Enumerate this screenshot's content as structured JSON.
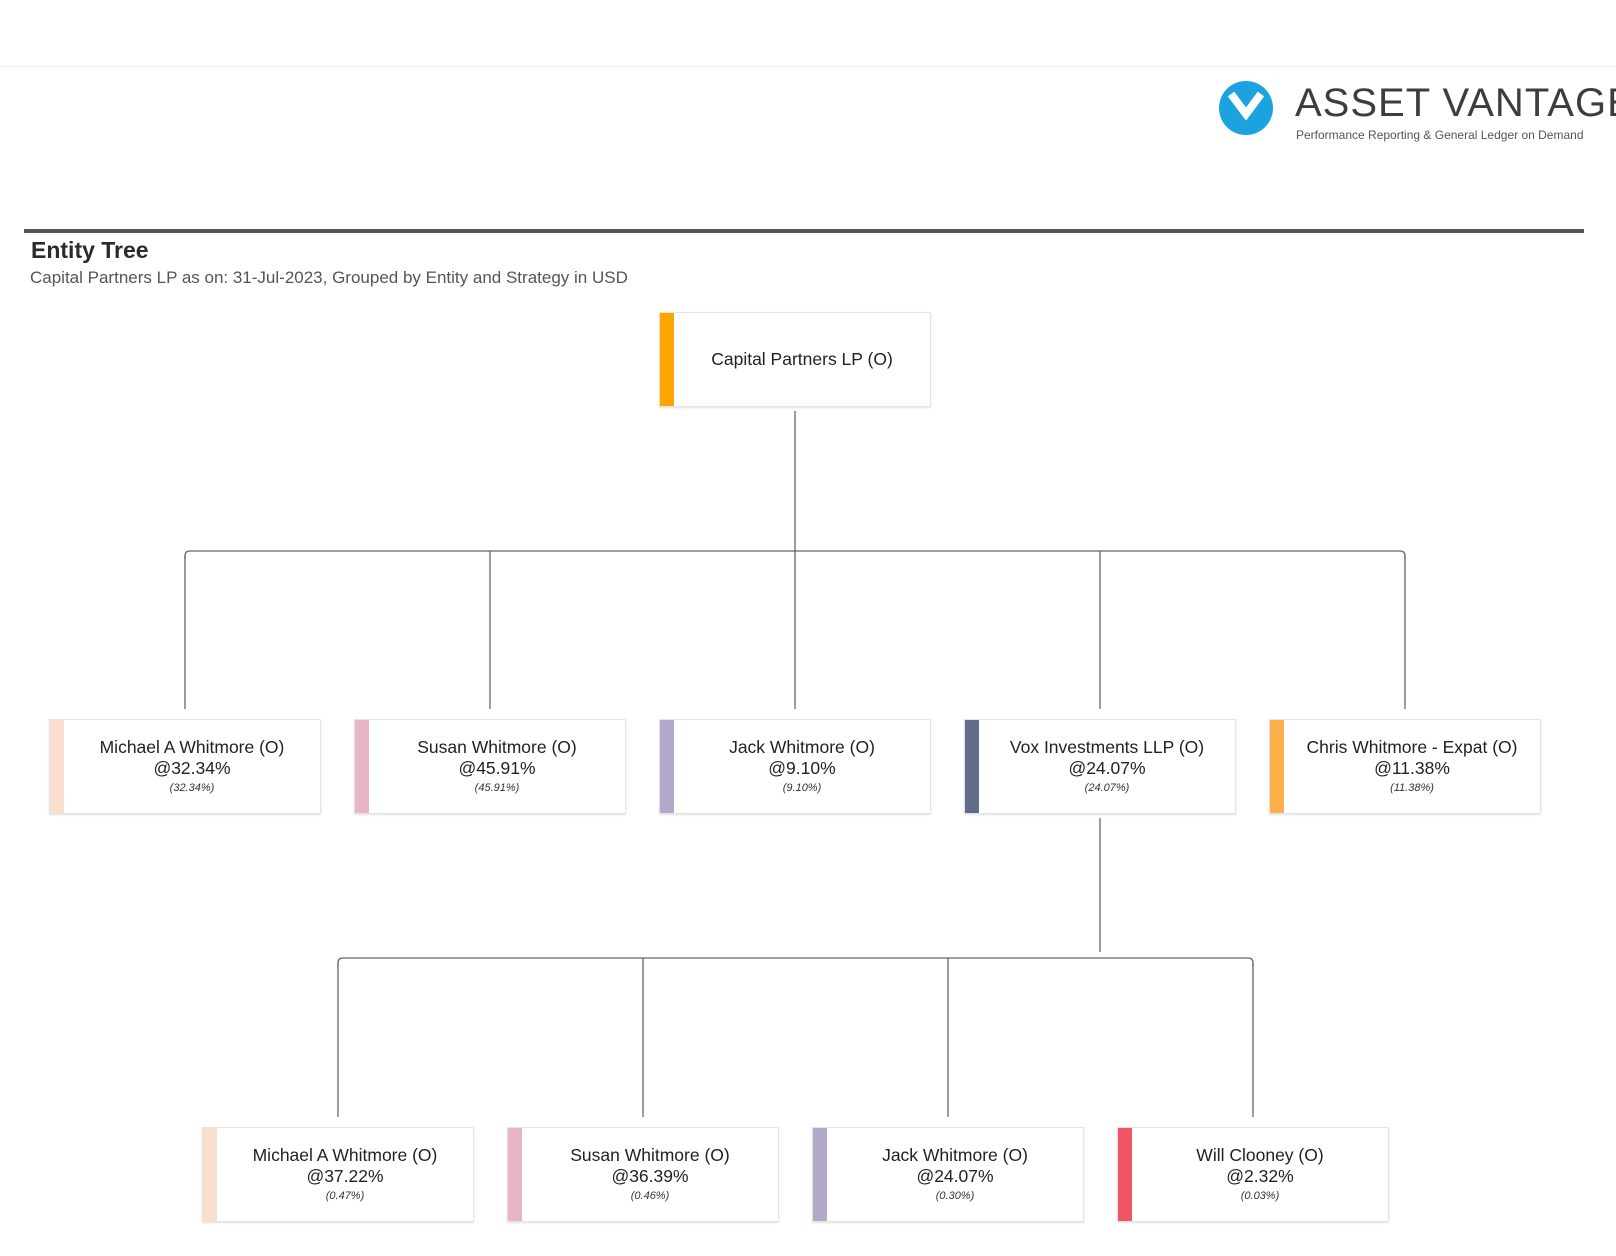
{
  "brand": {
    "name": "ASSET VANTAGE",
    "tagline": "Performance Reporting & General Ledger on Demand",
    "accent": "#1ba3e0"
  },
  "report": {
    "title": "Entity Tree",
    "subtitle": "Capital Partners LP as on: 31-Jul-2023, Grouped by Entity and Strategy in USD"
  },
  "tree": {
    "root": {
      "name": "Capital Partners LP (O)",
      "color": "#ffa500"
    },
    "level1": [
      {
        "name": "Michael A Whitmore (O)",
        "pct": "@32.34%",
        "sub": "(32.34%)",
        "color": "#fbe0cf"
      },
      {
        "name": "Susan Whitmore (O)",
        "pct": "@45.91%",
        "sub": "(45.91%)",
        "color": "#e8b4c8"
      },
      {
        "name": "Jack Whitmore (O)",
        "pct": "@9.10%",
        "sub": "(9.10%)",
        "color": "#b3a8c9"
      },
      {
        "name": "Vox Investments LLP (O)",
        "pct": "@24.07%",
        "sub": "(24.07%)",
        "color": "#5f6b87"
      },
      {
        "name": "Chris Whitmore - Expat (O)",
        "pct": "@11.38%",
        "sub": "(11.38%)",
        "color": "#fbb04a"
      }
    ],
    "level2": [
      {
        "name": "Michael A Whitmore (O)",
        "pct": "@37.22%",
        "sub": "(0.47%)",
        "color": "#fbe0cf"
      },
      {
        "name": "Susan Whitmore (O)",
        "pct": "@36.39%",
        "sub": "(0.46%)",
        "color": "#e8b4c8"
      },
      {
        "name": "Jack Whitmore (O)",
        "pct": "@24.07%",
        "sub": "(0.30%)",
        "color": "#b3a8c9"
      },
      {
        "name": "Will Clooney (O)",
        "pct": "@2.32%",
        "sub": "(0.03%)",
        "color": "#f05565"
      }
    ]
  }
}
